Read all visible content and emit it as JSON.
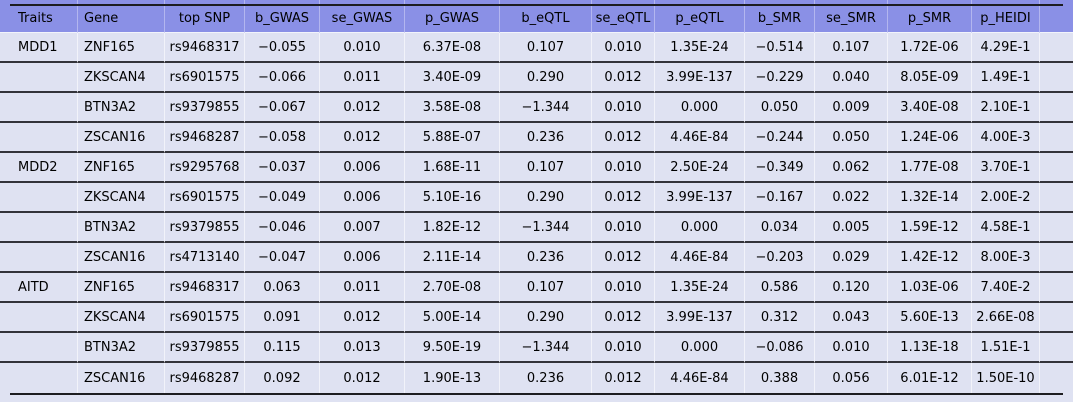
{
  "chart_data": {
    "type": "table",
    "columns": [
      {
        "key": "traits",
        "label": "Traits"
      },
      {
        "key": "gene",
        "label": "Gene"
      },
      {
        "key": "top_snp",
        "label": "top SNP"
      },
      {
        "key": "b_gwas",
        "label": "b_GWAS"
      },
      {
        "key": "se_gwas",
        "label": "se_GWAS"
      },
      {
        "key": "p_gwas",
        "label": "p_GWAS"
      },
      {
        "key": "b_eqtl",
        "label": "b_eQTL"
      },
      {
        "key": "se_eqtl",
        "label": "se_eQTL"
      },
      {
        "key": "p_eqtl",
        "label": "p_eQTL"
      },
      {
        "key": "b_smr",
        "label": "b_SMR"
      },
      {
        "key": "se_smr",
        "label": "se_SMR"
      },
      {
        "key": "p_smr",
        "label": "p_SMR"
      },
      {
        "key": "p_heidi",
        "label": "p_HEIDI"
      },
      {
        "key": "",
        "label": ""
      }
    ],
    "rows": [
      [
        "MDD1",
        "ZNF165",
        "rs9468317",
        "−0.055",
        "0.010",
        "6.37E-08",
        "0.107",
        "0.010",
        "1.35E-24",
        "−0.514",
        "0.107",
        "1.72E-06",
        "4.29E-1"
      ],
      [
        "",
        "ZKSCAN4",
        "rs6901575",
        "−0.066",
        "0.011",
        "3.40E-09",
        "0.290",
        "0.012",
        "3.99E-137",
        "−0.229",
        "0.040",
        "8.05E-09",
        "1.49E-1"
      ],
      [
        "",
        "BTN3A2",
        "rs9379855",
        "−0.067",
        "0.012",
        "3.58E-08",
        "−1.344",
        "0.010",
        "0.000",
        "0.050",
        "0.009",
        "3.40E-08",
        "2.10E-1"
      ],
      [
        "",
        "ZSCAN16",
        "rs9468287",
        "−0.058",
        "0.012",
        "5.88E-07",
        "0.236",
        "0.012",
        "4.46E-84",
        "−0.244",
        "0.050",
        "1.24E-06",
        "4.00E-3"
      ],
      [
        "MDD2",
        "ZNF165",
        "rs9295768",
        "−0.037",
        "0.006",
        "1.68E-11",
        "0.107",
        "0.010",
        "2.50E-24",
        "−0.349",
        "0.062",
        "1.77E-08",
        "3.70E-1"
      ],
      [
        "",
        "ZKSCAN4",
        "rs6901575",
        "−0.049",
        "0.006",
        "5.10E-16",
        "0.290",
        "0.012",
        "3.99E-137",
        "−0.167",
        "0.022",
        "1.32E-14",
        "2.00E-2"
      ],
      [
        "",
        "BTN3A2",
        "rs9379855",
        "−0.046",
        "0.007",
        "1.82E-12",
        "−1.344",
        "0.010",
        "0.000",
        "0.034",
        "0.005",
        "1.59E-12",
        "4.58E-1"
      ],
      [
        "",
        "ZSCAN16",
        "rs4713140",
        "−0.047",
        "0.006",
        "2.11E-14",
        "0.236",
        "0.012",
        "4.46E-84",
        "−0.203",
        "0.029",
        "1.42E-12",
        "8.00E-3"
      ],
      [
        "AITD",
        "ZNF165",
        "rs9468317",
        "0.063",
        "0.011",
        "2.70E-08",
        "0.107",
        "0.010",
        "1.35E-24",
        "0.586",
        "0.120",
        "1.03E-06",
        "7.40E-2"
      ],
      [
        "",
        "ZKSCAN4",
        "rs6901575",
        "0.091",
        "0.012",
        "5.00E-14",
        "0.290",
        "0.012",
        "3.99E-137",
        "0.312",
        "0.043",
        "5.60E-13",
        "2.66E-08"
      ],
      [
        "",
        "BTN3A2",
        "rs9379855",
        "0.115",
        "0.013",
        "9.50E-19",
        "−1.344",
        "0.010",
        "0.000",
        "−0.086",
        "0.010",
        "1.13E-18",
        "1.51E-1"
      ],
      [
        "",
        "ZSCAN16",
        "rs9468287",
        "0.092",
        "0.012",
        "1.90E-13",
        "0.236",
        "0.012",
        "4.46E-84",
        "0.388",
        "0.056",
        "6.01E-12",
        "1.50E-10"
      ]
    ],
    "layout": {
      "header_bg": "#8a90e6",
      "row_bg": "#dfe2f2",
      "rule_color": "#1d1d21",
      "row_separator_color": "#33333a",
      "grid_line_color": "#ffffff",
      "grid": "horizontal-rules-with-faint-column-lines",
      "trait_groups": [
        "MDD1",
        "MDD2",
        "AITD"
      ]
    }
  }
}
